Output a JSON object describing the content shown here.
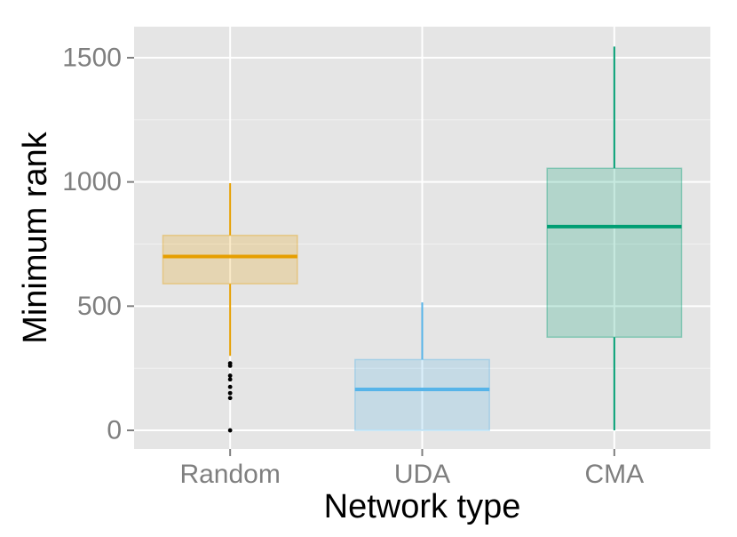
{
  "chart_data": {
    "type": "boxplot",
    "xlabel": "Network type",
    "ylabel": "Minimum rank",
    "ylim": [
      -75,
      1625
    ],
    "y_ticks": [
      0,
      500,
      1000,
      1500
    ],
    "grid": true,
    "background": "#e5e5e5",
    "categories": [
      "Random",
      "UDA",
      "CMA"
    ],
    "boxes": [
      {
        "category": "Random",
        "color": "#E69F00",
        "whisker_low": 300,
        "q1": 590,
        "median": 700,
        "q3": 785,
        "whisker_high": 995,
        "outliers": [
          270,
          260,
          220,
          205,
          175,
          150,
          130,
          0
        ]
      },
      {
        "category": "UDA",
        "color": "#56B4E9",
        "whisker_low": 0,
        "q1": 0,
        "median": 165,
        "q3": 285,
        "whisker_high": 515,
        "outliers": []
      },
      {
        "category": "CMA",
        "color": "#009E73",
        "whisker_low": 0,
        "q1": 375,
        "median": 820,
        "q3": 1055,
        "whisker_high": 1545,
        "outliers": []
      }
    ]
  }
}
